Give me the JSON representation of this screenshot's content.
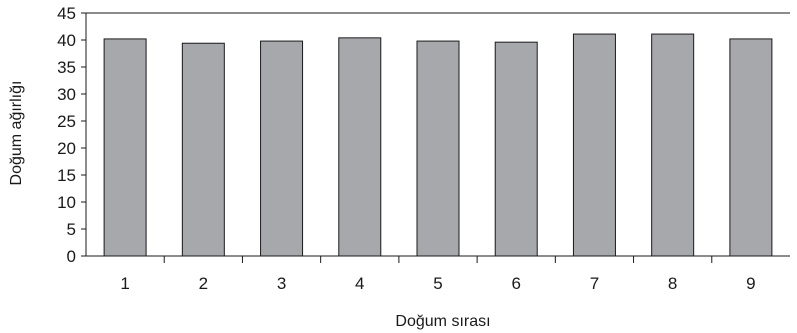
{
  "chart_data": {
    "type": "bar",
    "title": "",
    "xlabel": "Doğum sırası",
    "ylabel": "Doğum ağırlığı",
    "categories": [
      "1",
      "2",
      "3",
      "4",
      "5",
      "6",
      "7",
      "8",
      "9"
    ],
    "values": [
      40.2,
      39.4,
      39.8,
      40.4,
      39.8,
      39.6,
      41.1,
      41.1,
      40.2
    ],
    "ylim": [
      0,
      45
    ],
    "yticks": [
      "0",
      "5",
      "10",
      "15",
      "20",
      "25",
      "30",
      "35",
      "40",
      "45"
    ],
    "grid": false,
    "legend": "none",
    "colors": {
      "bar_fill": "#a7a8ab",
      "bar_stroke": "#1a1a1a",
      "axis": "#1a1a1a",
      "text": "#1a1a1a"
    }
  }
}
